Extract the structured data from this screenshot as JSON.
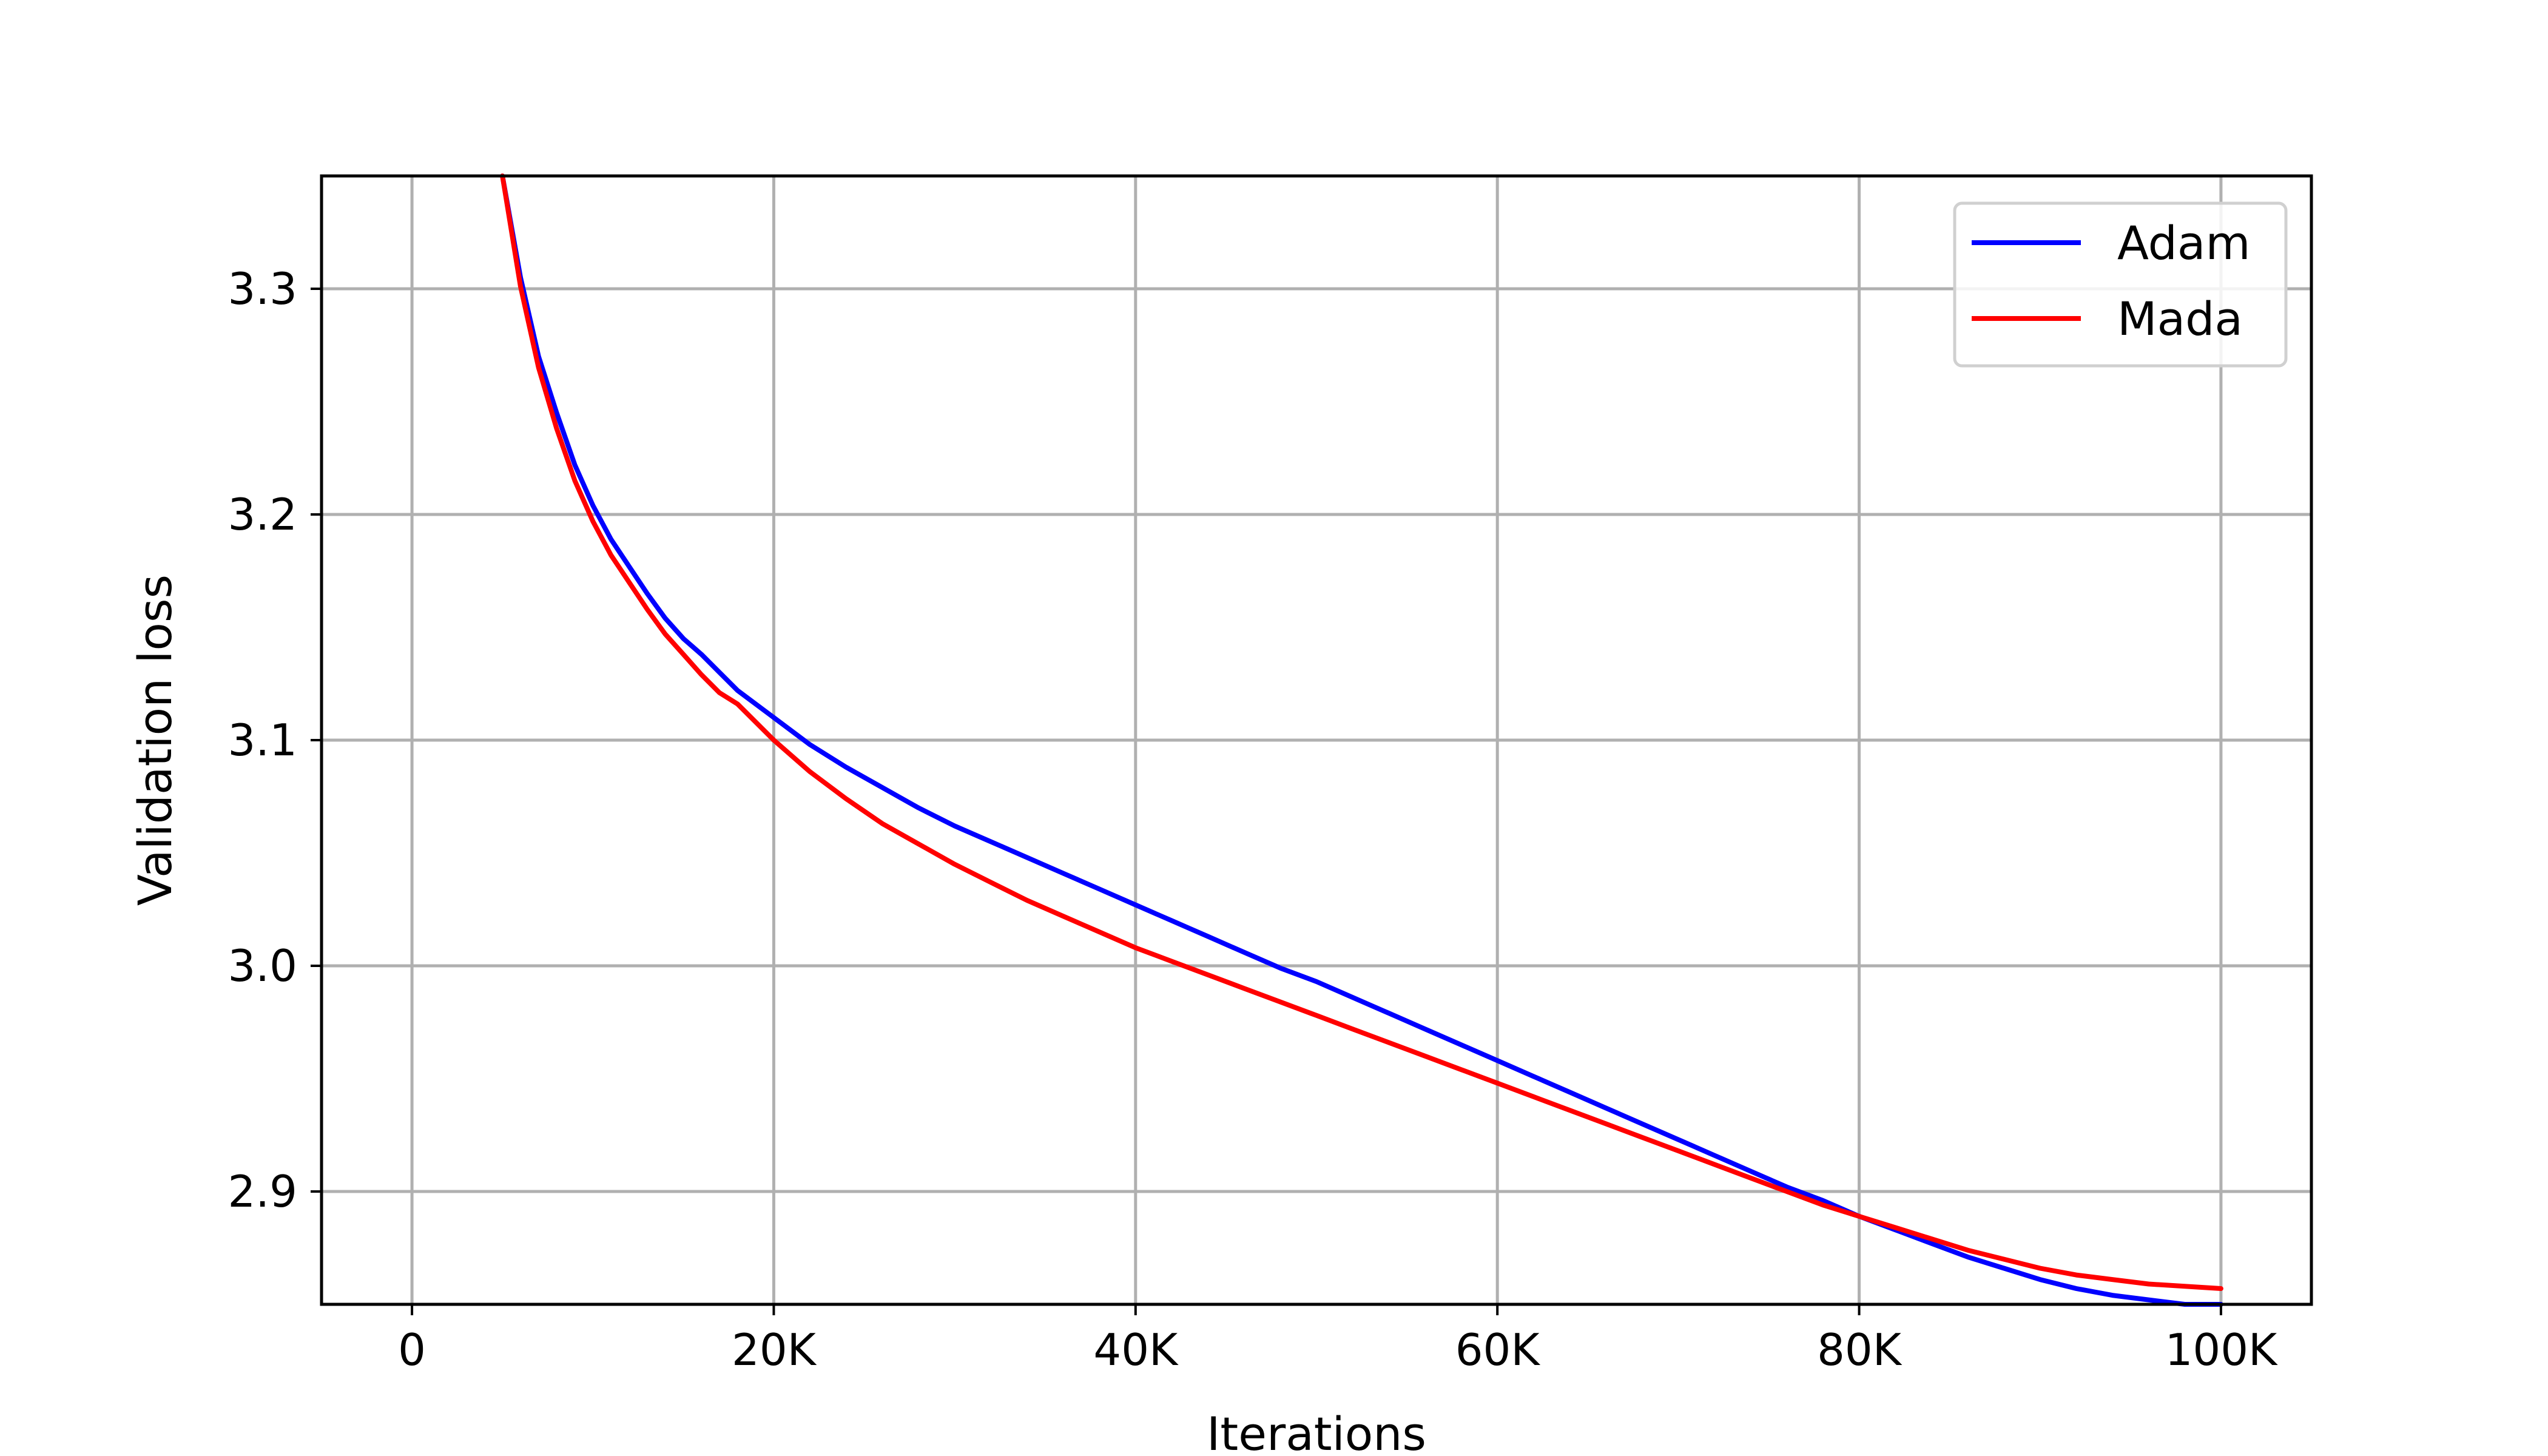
{
  "chart_data": {
    "type": "line",
    "title": "",
    "xlabel": "Iterations",
    "ylabel": "Validation loss",
    "xlim": [
      -5000,
      105000
    ],
    "ylim": [
      2.85,
      3.35
    ],
    "grid": true,
    "legend_position": "top-right",
    "x_ticks": [
      {
        "value": 0,
        "label": "0"
      },
      {
        "value": 20000,
        "label": "20K"
      },
      {
        "value": 40000,
        "label": "40K"
      },
      {
        "value": 60000,
        "label": "60K"
      },
      {
        "value": 80000,
        "label": "80K"
      },
      {
        "value": 100000,
        "label": "100K"
      }
    ],
    "y_ticks": [
      {
        "value": 2.9,
        "label": "2.9"
      },
      {
        "value": 3.0,
        "label": "3.0"
      },
      {
        "value": 3.1,
        "label": "3.1"
      },
      {
        "value": 3.2,
        "label": "3.2"
      },
      {
        "value": 3.3,
        "label": "3.3"
      }
    ],
    "x": [
      5000,
      6000,
      7000,
      8000,
      9000,
      10000,
      11000,
      12000,
      13000,
      14000,
      15000,
      16000,
      17000,
      18000,
      20000,
      22000,
      24000,
      26000,
      28000,
      30000,
      32000,
      34000,
      36000,
      38000,
      40000,
      42000,
      44000,
      46000,
      48000,
      50000,
      52000,
      54000,
      56000,
      58000,
      60000,
      62000,
      64000,
      66000,
      68000,
      70000,
      72000,
      74000,
      76000,
      78000,
      80000,
      82000,
      84000,
      86000,
      88000,
      90000,
      92000,
      94000,
      96000,
      98000,
      100000
    ],
    "series": [
      {
        "name": "Adam",
        "color": "#0000ff",
        "values": [
          3.35,
          3.305,
          3.27,
          3.245,
          3.222,
          3.204,
          3.189,
          3.177,
          3.165,
          3.154,
          3.145,
          3.138,
          3.13,
          3.122,
          3.11,
          3.098,
          3.088,
          3.079,
          3.07,
          3.062,
          3.055,
          3.048,
          3.041,
          3.034,
          3.027,
          3.02,
          3.013,
          3.006,
          2.999,
          2.993,
          2.986,
          2.979,
          2.972,
          2.965,
          2.958,
          2.951,
          2.944,
          2.937,
          2.93,
          2.923,
          2.916,
          2.909,
          2.902,
          2.896,
          2.889,
          2.883,
          2.877,
          2.871,
          2.866,
          2.861,
          2.857,
          2.854,
          2.852,
          2.85,
          2.849
        ]
      },
      {
        "name": "Mada",
        "color": "#ff0000",
        "values": [
          3.35,
          3.301,
          3.265,
          3.238,
          3.215,
          3.197,
          3.182,
          3.17,
          3.158,
          3.147,
          3.138,
          3.129,
          3.121,
          3.116,
          3.1,
          3.086,
          3.074,
          3.063,
          3.054,
          3.045,
          3.037,
          3.029,
          3.022,
          3.015,
          3.008,
          3.002,
          2.996,
          2.99,
          2.984,
          2.978,
          2.972,
          2.966,
          2.96,
          2.954,
          2.948,
          2.942,
          2.936,
          2.93,
          2.924,
          2.918,
          2.912,
          2.906,
          2.9,
          2.894,
          2.889,
          2.884,
          2.879,
          2.874,
          2.87,
          2.866,
          2.863,
          2.861,
          2.859,
          2.858,
          2.857
        ]
      }
    ]
  }
}
